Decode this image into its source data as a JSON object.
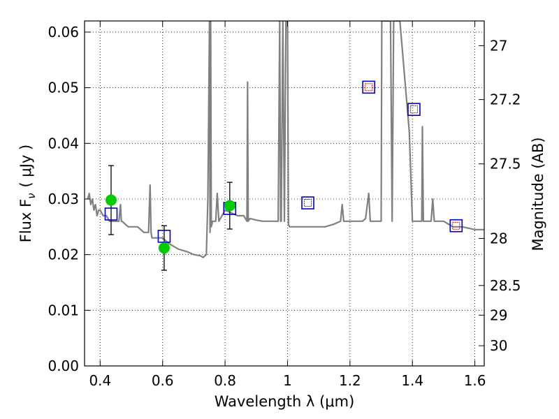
{
  "chart_data": {
    "type": "line",
    "title": "",
    "xlabel": "Wavelength  λ (μm)",
    "ylabel": "Flux  F",
    "ylabel_sub": "ν",
    "ylabel_unit": "( μJy )",
    "ylabel_right": "Magnitude (AB)",
    "xlim": [
      0.35,
      1.63
    ],
    "ylim": [
      0.0,
      0.062
    ],
    "x_ticks": [
      0.4,
      0.6,
      0.8,
      1.0,
      1.2,
      1.4,
      1.6
    ],
    "x_tick_labels": [
      "0.4",
      "0.6",
      "0.8",
      "1",
      "1.2",
      "1.4",
      "1.6"
    ],
    "y_ticks": [
      0.0,
      0.01,
      0.02,
      0.03,
      0.04,
      0.05,
      0.06
    ],
    "y_tick_labels": [
      "0.00",
      "0.01",
      "0.02",
      "0.03",
      "0.04",
      "0.05",
      "0.06"
    ],
    "right_ticks": [
      27,
      27.2,
      27.5,
      28,
      28.5,
      29,
      30
    ],
    "right_tick_labels": [
      "27",
      "27.2",
      "27.5",
      "28",
      "28.5",
      "29",
      "30"
    ],
    "grid": true,
    "colors": {
      "model": "#808080",
      "observed": "#00cc00",
      "synthetic": "#0000cc",
      "synthetic_inner": "#cc0000",
      "errorbar": "#000000"
    },
    "series": [
      {
        "kind": "model_sed",
        "x": [
          0.36,
          0.365,
          0.37,
          0.375,
          0.38,
          0.385,
          0.39,
          0.395,
          0.4,
          0.41,
          0.42,
          0.43,
          0.44,
          0.45,
          0.46,
          0.465,
          0.468,
          0.47,
          0.48,
          0.49,
          0.5,
          0.52,
          0.54,
          0.555,
          0.56,
          0.563,
          0.566,
          0.57,
          0.6,
          0.62,
          0.65,
          0.68,
          0.7,
          0.72,
          0.73,
          0.74,
          0.745,
          0.75,
          0.752,
          0.754,
          0.756,
          0.76,
          0.77,
          0.775,
          0.78,
          0.79,
          0.8,
          0.82,
          0.84,
          0.86,
          0.87,
          0.872,
          0.874,
          0.88,
          0.9,
          0.92,
          0.95,
          0.97,
          0.975,
          0.978,
          0.98,
          0.985,
          0.99,
          0.995,
          1.0,
          1.003,
          1.006,
          1.01,
          1.02,
          1.05,
          1.08,
          1.1,
          1.12,
          1.15,
          1.17,
          1.175,
          1.18,
          1.19,
          1.2,
          1.22,
          1.24,
          1.25,
          1.26,
          1.265,
          1.27,
          1.3,
          1.302,
          1.305,
          1.31,
          1.32,
          1.33,
          1.335,
          1.34,
          1.36,
          1.39,
          1.4,
          1.42,
          1.43,
          1.432,
          1.435,
          1.44,
          1.46,
          1.465,
          1.47,
          1.5,
          1.53,
          1.56,
          1.6,
          1.63
        ],
        "y": [
          0.03,
          0.031,
          0.029,
          0.03,
          0.028,
          0.029,
          0.027,
          0.028,
          0.028,
          0.027,
          0.027,
          0.026,
          0.026,
          0.026,
          0.026,
          0.029,
          0.026,
          0.026,
          0.0255,
          0.025,
          0.025,
          0.025,
          0.024,
          0.024,
          0.0325,
          0.024,
          0.023,
          0.023,
          0.023,
          0.022,
          0.021,
          0.0205,
          0.02,
          0.0198,
          0.0195,
          0.02,
          0.03,
          0.062,
          0.024,
          0.062,
          0.025,
          0.026,
          0.026,
          0.031,
          0.026,
          0.027,
          0.028,
          0.0275,
          0.027,
          0.027,
          0.026,
          0.051,
          0.026,
          0.0265,
          0.0262,
          0.026,
          0.026,
          0.026,
          0.062,
          0.026,
          0.026,
          0.062,
          0.026,
          0.062,
          0.062,
          0.0255,
          0.025,
          0.025,
          0.025,
          0.025,
          0.025,
          0.025,
          0.025,
          0.0255,
          0.026,
          0.029,
          0.026,
          0.026,
          0.026,
          0.026,
          0.026,
          0.0265,
          0.031,
          0.026,
          0.026,
          0.026,
          0.062,
          0.062,
          0.062,
          0.062,
          0.062,
          0.026,
          0.062,
          0.062,
          0.042,
          0.026,
          0.026,
          0.026,
          0.043,
          0.026,
          0.026,
          0.026,
          0.03,
          0.026,
          0.026,
          0.025,
          0.025,
          0.0245,
          0.0245
        ]
      },
      {
        "kind": "observed",
        "x": [
          0.435,
          0.605,
          0.815
        ],
        "y": [
          0.0298,
          0.0212,
          0.0288
        ],
        "yerr": [
          0.0062,
          0.004,
          0.0042
        ]
      },
      {
        "kind": "synthetic",
        "x": [
          0.435,
          0.605,
          0.815,
          1.065,
          1.26,
          1.405,
          1.54
        ],
        "y": [
          0.0273,
          0.0233,
          0.0283,
          0.0293,
          0.0501,
          0.0461,
          0.0252
        ],
        "inner": [
          false,
          false,
          false,
          true,
          true,
          true,
          true
        ]
      }
    ]
  }
}
